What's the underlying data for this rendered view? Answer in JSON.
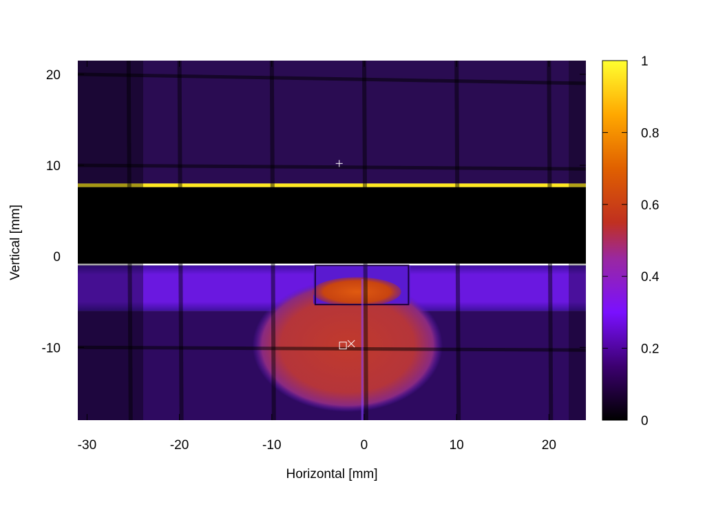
{
  "chart_data": {
    "type": "heatmap",
    "xlabel": "Horizontal [mm]",
    "ylabel": "Vertical [mm]",
    "xlim": [
      -31,
      24
    ],
    "ylim": [
      -18,
      21.5
    ],
    "x_ticks": [
      -30,
      -20,
      -10,
      0,
      10,
      20
    ],
    "y_ticks": [
      20,
      10,
      0,
      -10
    ],
    "colorbar": {
      "range": [
        0,
        1
      ],
      "ticks": [
        0,
        0.2,
        0.4,
        0.6,
        0.8,
        1
      ],
      "colormap": [
        "#000000",
        "#3c0070",
        "#7a10ff",
        "#c03020",
        "#e06000",
        "#ffd000",
        "#ffff30"
      ]
    },
    "regions": [
      {
        "name": "upper-background",
        "x": [
          -31,
          24
        ],
        "y": [
          8,
          21.5
        ],
        "value": 0.1
      },
      {
        "name": "bright-edge-line",
        "x": [
          -31,
          24
        ],
        "y": [
          7.6,
          8.0
        ],
        "value": 1.0
      },
      {
        "name": "dark-band",
        "x": [
          -31,
          24
        ],
        "y": [
          -0.8,
          7.6
        ],
        "value": 0.0
      },
      {
        "name": "horizontal-beam-band",
        "x": [
          -31,
          24
        ],
        "y": [
          -6,
          -1
        ],
        "value": 0.27
      },
      {
        "name": "lower-background",
        "x": [
          -31,
          24
        ],
        "y": [
          -18,
          -6
        ],
        "value": 0.15
      },
      {
        "name": "central-spot",
        "cx": -1.8,
        "cy": -9.8,
        "rx": 10.3,
        "ry": 7.3,
        "value": 0.48
      },
      {
        "name": "upper-window",
        "x": [
          -5.5,
          5
        ],
        "y": [
          -5.2,
          -1
        ],
        "value": 0.3
      },
      {
        "name": "upper-window-spot",
        "cx": -0.8,
        "cy": -3.9,
        "rx": 4.8,
        "ry": 1.6,
        "value": 0.58
      }
    ],
    "markers": [
      {
        "symbol": "plus",
        "x": -2.7,
        "y": 10.2
      },
      {
        "symbol": "square",
        "x": -2.3,
        "y": -9.8
      },
      {
        "symbol": "cross",
        "x": -1.4,
        "y": -9.6
      }
    ]
  }
}
